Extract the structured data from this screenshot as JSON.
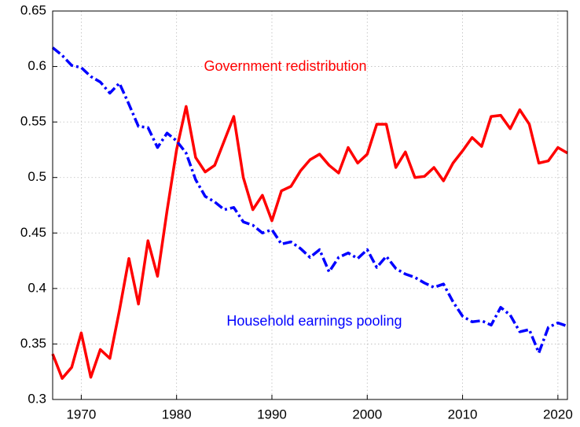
{
  "chart_data": {
    "type": "line",
    "x": [
      1967,
      1968,
      1969,
      1970,
      1971,
      1972,
      1973,
      1974,
      1975,
      1976,
      1977,
      1978,
      1979,
      1980,
      1981,
      1982,
      1983,
      1984,
      1985,
      1986,
      1987,
      1988,
      1989,
      1990,
      1991,
      1992,
      1993,
      1994,
      1995,
      1996,
      1997,
      1998,
      1999,
      2000,
      2001,
      2002,
      2003,
      2004,
      2005,
      2006,
      2007,
      2008,
      2009,
      2010,
      2011,
      2012,
      2013,
      2014,
      2015,
      2016,
      2017,
      2018,
      2019,
      2020,
      2021
    ],
    "series": [
      {
        "name": "Government redistribution",
        "color": "#ff0000",
        "dash": "solid",
        "values": [
          0.341,
          0.319,
          0.329,
          0.36,
          0.32,
          0.345,
          0.337,
          0.38,
          0.427,
          0.386,
          0.443,
          0.411,
          0.47,
          0.525,
          0.564,
          0.518,
          0.505,
          0.511,
          0.533,
          0.555,
          0.5,
          0.471,
          0.484,
          0.461,
          0.488,
          0.492,
          0.506,
          0.516,
          0.521,
          0.511,
          0.504,
          0.527,
          0.513,
          0.521,
          0.548,
          0.548,
          0.509,
          0.523,
          0.5,
          0.501,
          0.509,
          0.497,
          0.513,
          0.524,
          0.536,
          0.528,
          0.555,
          0.556,
          0.544,
          0.561,
          0.548,
          0.513,
          0.515,
          0.527,
          0.522
        ]
      },
      {
        "name": "Household earnings pooling",
        "color": "#0000ff",
        "dash": "dashdot",
        "values": [
          0.617,
          0.61,
          0.601,
          0.599,
          0.591,
          0.586,
          0.576,
          0.585,
          0.566,
          0.546,
          0.545,
          0.527,
          0.54,
          0.533,
          0.522,
          0.498,
          0.483,
          0.478,
          0.471,
          0.473,
          0.46,
          0.457,
          0.45,
          0.453,
          0.44,
          0.442,
          0.436,
          0.428,
          0.435,
          0.415,
          0.428,
          0.432,
          0.427,
          0.435,
          0.419,
          0.429,
          0.418,
          0.413,
          0.41,
          0.405,
          0.401,
          0.404,
          0.388,
          0.375,
          0.37,
          0.371,
          0.367,
          0.383,
          0.376,
          0.361,
          0.363,
          0.342,
          0.365,
          0.369,
          0.366
        ]
      }
    ],
    "xlim": [
      1967,
      2021
    ],
    "xticks": [
      1970,
      1980,
      1990,
      2000,
      2010,
      2020
    ],
    "ylim": [
      0.3,
      0.65
    ],
    "yticks": [
      0.3,
      0.35,
      0.4,
      0.45,
      0.5,
      0.55,
      0.6,
      0.65
    ],
    "grid": true
  }
}
